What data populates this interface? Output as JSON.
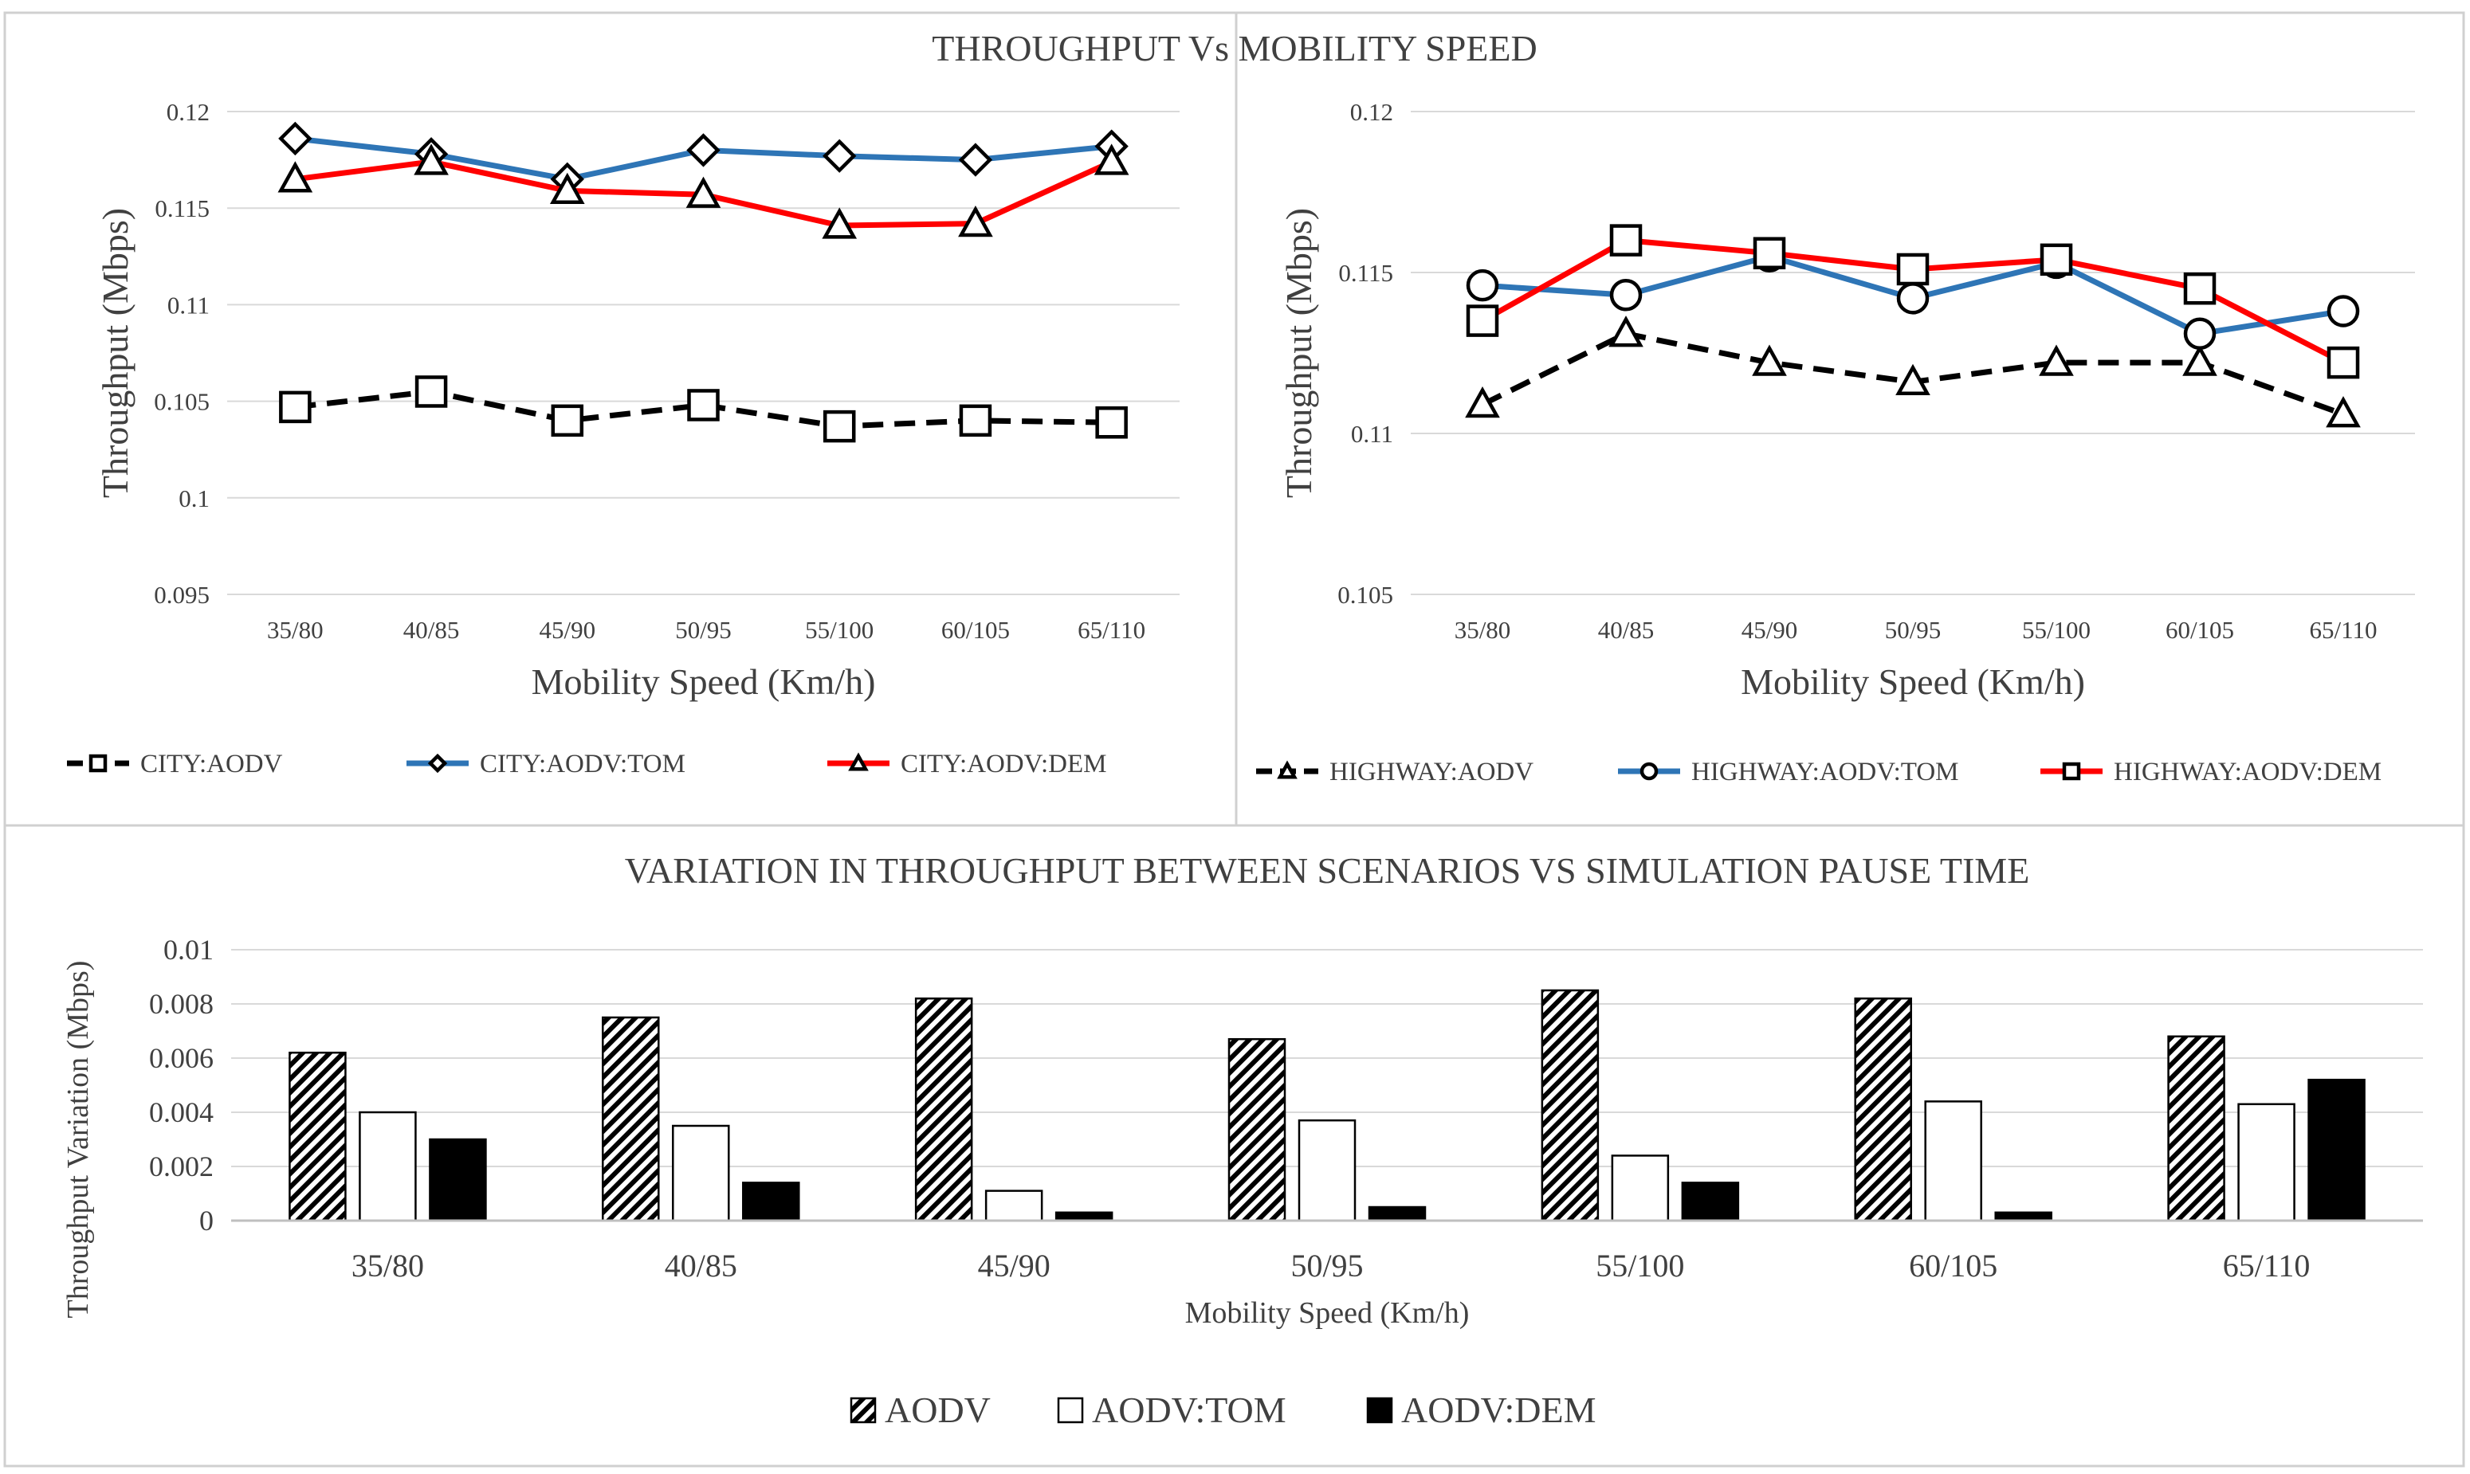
{
  "main_title": "THROUGHPUT  Vs MOBILITY  SPEED",
  "colors": {
    "aodv": "#000000",
    "tom": "#2E75B6",
    "dem": "#FF0000",
    "grid": "#D9D9D9",
    "axis_text": "#595959"
  },
  "chart_data": [
    {
      "id": "city",
      "type": "line",
      "title": "",
      "categories": [
        "35/80",
        "40/85",
        "45/90",
        "50/95",
        "55/100",
        "60/105",
        "65/110"
      ],
      "xlabel": "Mobility Speed (Km/h)",
      "ylabel": "Throughput (Mbps)",
      "ylim": [
        0.095,
        0.12
      ],
      "yticks": [
        "0.095",
        "0.1",
        "0.105",
        "0.11",
        "0.115",
        "0.12"
      ],
      "grid": true,
      "legend_position": "bottom",
      "series": [
        {
          "name": "CITY:AODV",
          "marker": "square",
          "style": "dashed",
          "color": "#000000",
          "values": [
            0.1047,
            0.1055,
            0.104,
            0.1048,
            0.1037,
            0.104,
            0.1039
          ]
        },
        {
          "name": "CITY:AODV:TOM",
          "marker": "diamond",
          "style": "solid",
          "color": "#2E75B6",
          "values": [
            0.1186,
            0.1178,
            0.1165,
            0.118,
            0.1177,
            0.1175,
            0.1182
          ]
        },
        {
          "name": "CITY:AODV:DEM",
          "marker": "triangle",
          "style": "solid",
          "color": "#FF0000",
          "values": [
            0.1165,
            0.1174,
            0.1159,
            0.1157,
            0.1141,
            0.1142,
            0.1174
          ]
        }
      ]
    },
    {
      "id": "highway",
      "type": "line",
      "title": "",
      "categories": [
        "35/80",
        "40/85",
        "45/90",
        "50/95",
        "55/100",
        "60/105",
        "65/110"
      ],
      "xlabel": "Mobility Speed (Km/h)",
      "ylabel": "Throughput (Mbps)",
      "ylim": [
        0.105,
        0.12
      ],
      "yticks": [
        "0.105",
        "0.11",
        "0.115",
        "0.12"
      ],
      "grid": true,
      "legend_position": "bottom",
      "series": [
        {
          "name": "HIGHWAY:AODV",
          "marker": "triangle",
          "style": "dashed",
          "color": "#000000",
          "values": [
            0.1109,
            0.1131,
            0.1122,
            0.1116,
            0.1122,
            0.1122,
            0.1106
          ]
        },
        {
          "name": "HIGHWAY:AODV:TOM",
          "marker": "circle",
          "style": "solid",
          "color": "#2E75B6",
          "values": [
            0.1146,
            0.1143,
            0.1155,
            0.1142,
            0.1153,
            0.1131,
            0.1138
          ]
        },
        {
          "name": "HIGHWAY:AODV:DEM",
          "marker": "square",
          "style": "solid",
          "color": "#FF0000",
          "values": [
            0.1135,
            0.116,
            0.1156,
            0.1151,
            0.1154,
            0.1145,
            0.1122
          ]
        }
      ]
    },
    {
      "id": "variation",
      "type": "bar",
      "title": "VARIATION IN THROUGHPUT  BETWEEN SCENARIOS VS SIMULATION PAUSE TIME",
      "categories": [
        "35/80",
        "40/85",
        "45/90",
        "50/95",
        "55/100",
        "60/105",
        "65/110"
      ],
      "xlabel": "Mobility Speed (Km/h)",
      "ylabel": "Throughput Variation (Mbps)",
      "ylim": [
        0,
        0.01
      ],
      "yticks": [
        "0",
        "0.002",
        "0.004",
        "0.006",
        "0.008",
        "0.01"
      ],
      "grid": true,
      "legend_position": "bottom",
      "series": [
        {
          "name": "AODV",
          "fill": "hatched",
          "values": [
            0.0062,
            0.0075,
            0.0082,
            0.0067,
            0.0085,
            0.0082,
            0.0068
          ]
        },
        {
          "name": "AODV:TOM",
          "fill": "white",
          "values": [
            0.004,
            0.0035,
            0.0011,
            0.0037,
            0.0024,
            0.0044,
            0.0043
          ]
        },
        {
          "name": "AODV:DEM",
          "fill": "black",
          "values": [
            0.003,
            0.0014,
            0.0003,
            0.0005,
            0.0014,
            0.0003,
            0.0052
          ]
        }
      ]
    }
  ]
}
